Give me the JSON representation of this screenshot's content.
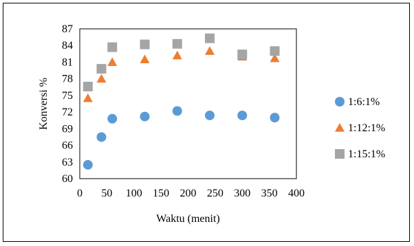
{
  "chart_data": {
    "type": "scatter",
    "title": "",
    "xlabel": "Waktu (menit)",
    "ylabel": "Konversi %",
    "xlim": [
      0,
      400
    ],
    "ylim": [
      60,
      87
    ],
    "xticks": [
      0,
      50,
      100,
      150,
      200,
      250,
      300,
      350,
      400
    ],
    "yticks": [
      60,
      63,
      66,
      69,
      72,
      75,
      78,
      81,
      84,
      87
    ],
    "grid": false,
    "legend_position": "right",
    "series": [
      {
        "name": "1:6:1%",
        "marker": "circle",
        "color": "#5B9BD5",
        "points": [
          [
            15,
            62.5
          ],
          [
            40,
            67.5
          ],
          [
            60,
            70.8
          ],
          [
            120,
            71.2
          ],
          [
            180,
            72.2
          ],
          [
            240,
            71.4
          ],
          [
            300,
            71.4
          ],
          [
            360,
            71.0
          ]
        ]
      },
      {
        "name": "1:12:1%",
        "marker": "triangle",
        "color": "#ED7D31",
        "points": [
          [
            15,
            74.5
          ],
          [
            40,
            78.0
          ],
          [
            60,
            81.0
          ],
          [
            120,
            81.5
          ],
          [
            180,
            82.2
          ],
          [
            240,
            83.0
          ],
          [
            300,
            82.0
          ],
          [
            360,
            81.7
          ]
        ]
      },
      {
        "name": "1:15:1%",
        "marker": "square",
        "color": "#A5A5A5",
        "points": [
          [
            15,
            76.6
          ],
          [
            40,
            79.8
          ],
          [
            60,
            83.7
          ],
          [
            120,
            84.2
          ],
          [
            180,
            84.3
          ],
          [
            240,
            85.3
          ],
          [
            300,
            82.4
          ],
          [
            360,
            83.0
          ]
        ]
      }
    ]
  }
}
